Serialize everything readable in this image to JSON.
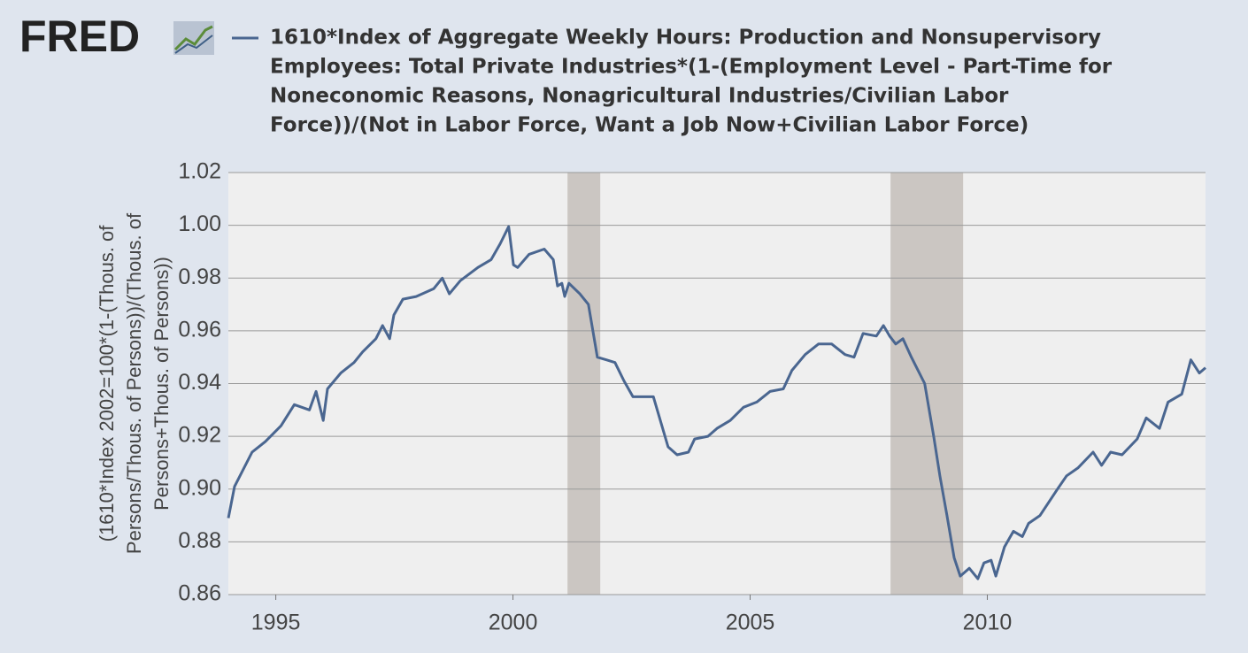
{
  "chart_data": {
    "type": "line",
    "logo": "FRED",
    "title": [
      "1610*Index of Aggregate Weekly Hours: Production and Nonsupervisory",
      "Employees: Total Private Industries*(1-(Employment Level - Part-Time for",
      "Noneconomic Reasons, Nonagricultural Industries/Civilian Labor",
      "Force))/(Not in Labor Force, Want a Job Now+Civilian Labor Force)"
    ],
    "ylabel": [
      "(1610*Index 2002=100*(1-(Thous. of",
      "Persons/Thous. of Persons))/(Thous. of",
      "Persons+Thous. of Persons))"
    ],
    "x": [
      1994.0,
      1994.13,
      1994.5,
      1994.78,
      1995.11,
      1995.39,
      1995.71,
      1995.85,
      1996.0,
      1996.09,
      1996.37,
      1996.65,
      1996.83,
      1997.11,
      1997.25,
      1997.4,
      1997.49,
      1997.68,
      1997.96,
      1998.33,
      1998.51,
      1998.66,
      1998.89,
      1999.26,
      1999.54,
      1999.73,
      1999.91,
      2000.01,
      2000.1,
      2000.34,
      2000.66,
      2000.85,
      2000.94,
      2001.03,
      2001.09,
      2001.18,
      2001.41,
      2001.59,
      2001.78,
      2001.97,
      2002.15,
      2002.34,
      2002.53,
      2002.71,
      2002.96,
      2003.09,
      2003.27,
      2003.46,
      2003.7,
      2003.83,
      2004.11,
      2004.3,
      2004.58,
      2004.86,
      2005.14,
      2005.42,
      2005.7,
      2005.88,
      2006.16,
      2006.44,
      2006.72,
      2007.0,
      2007.19,
      2007.38,
      2007.66,
      2007.81,
      2007.94,
      2008.07,
      2008.22,
      2008.4,
      2008.68,
      2008.87,
      2009.0,
      2009.15,
      2009.3,
      2009.43,
      2009.62,
      2009.8,
      2009.93,
      2010.08,
      2010.18,
      2010.36,
      2010.55,
      2010.74,
      2010.87,
      2011.11,
      2011.48,
      2011.67,
      2011.91,
      2012.23,
      2012.41,
      2012.6,
      2012.84,
      2013.16,
      2013.35,
      2013.63,
      2013.81,
      2014.1,
      2014.29,
      2014.47,
      2014.6
    ],
    "series": [
      {
        "name": "1610*Index of Aggregate Weekly Hours",
        "color": "#4a6690",
        "values": [
          0.889,
          0.901,
          0.914,
          0.918,
          0.924,
          0.932,
          0.93,
          0.937,
          0.926,
          0.938,
          0.944,
          0.948,
          0.952,
          0.957,
          0.962,
          0.957,
          0.966,
          0.972,
          0.973,
          0.976,
          0.98,
          0.974,
          0.979,
          0.984,
          0.987,
          0.993,
          0.9995,
          0.985,
          0.984,
          0.989,
          0.991,
          0.987,
          0.977,
          0.978,
          0.973,
          0.978,
          0.974,
          0.97,
          0.95,
          0.949,
          0.948,
          0.941,
          0.935,
          0.935,
          0.935,
          0.927,
          0.916,
          0.913,
          0.914,
          0.919,
          0.92,
          0.923,
          0.926,
          0.931,
          0.933,
          0.937,
          0.938,
          0.945,
          0.951,
          0.955,
          0.955,
          0.951,
          0.95,
          0.959,
          0.958,
          0.962,
          0.958,
          0.955,
          0.957,
          0.95,
          0.94,
          0.92,
          0.905,
          0.89,
          0.874,
          0.867,
          0.87,
          0.866,
          0.872,
          0.873,
          0.867,
          0.878,
          0.884,
          0.882,
          0.887,
          0.89,
          0.9,
          0.905,
          0.908,
          0.914,
          0.909,
          0.914,
          0.913,
          0.919,
          0.927,
          0.923,
          0.933,
          0.936,
          0.949,
          0.944,
          0.946
        ]
      }
    ],
    "recessions": [
      [
        2001.15,
        2001.84
      ],
      [
        2007.96,
        2009.49
      ]
    ],
    "recession_color": "#cbc6c2",
    "xlim": [
      1994.0,
      2014.6
    ],
    "xticks": [
      1995,
      2000,
      2005,
      2010
    ],
    "ylim": [
      0.86,
      1.02
    ],
    "yticks": [
      0.86,
      0.88,
      {
        "value": 0.9,
        "label": "0.90"
      },
      0.92,
      0.94,
      0.96,
      0.98,
      {
        "value": 1,
        "label": "1.00"
      },
      1.02
    ],
    "grid": true
  }
}
